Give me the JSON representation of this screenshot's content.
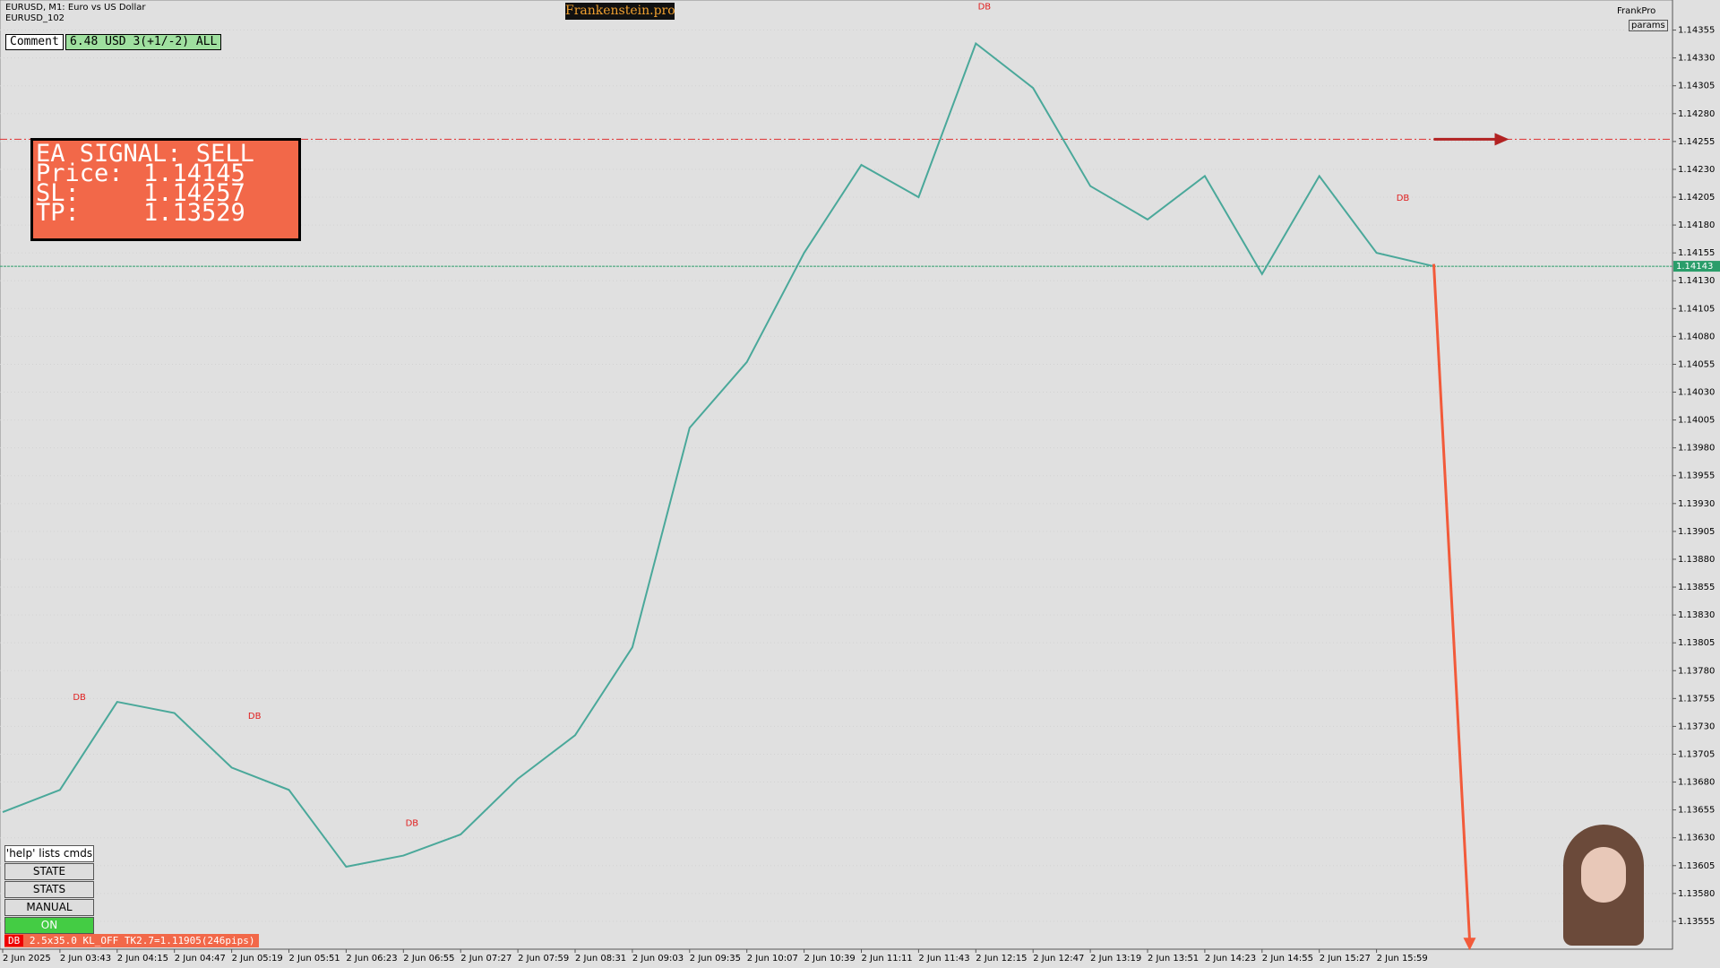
{
  "header": {
    "symbol": "EURUSD, M1:  Euro vs US Dollar",
    "account": "EURUSD_102",
    "brand": "Frankenstein.pro",
    "user": "FrankPro",
    "params": "params"
  },
  "comment": {
    "label": "Comment",
    "value": "6.48 USD 3(+1/-2) ALL"
  },
  "signal": {
    "title": "EA SIGNAL: SELL",
    "price_label": "Price:",
    "price": 1.14145,
    "sl_label": "SL:",
    "sl": 1.14257,
    "tp_label": "TP:",
    "tp": 1.13529
  },
  "buttons": [
    "'help' lists cmds",
    "STATE",
    "STATS",
    "MANUAL",
    "ON"
  ],
  "status": {
    "tag": "DB",
    "text": "2.5x35.0 KL_OFF TK2.7=1.11905(246pips)"
  },
  "chart_data": {
    "type": "line",
    "categories": [
      "2 Jun 2025",
      "2 Jun 03:43",
      "2 Jun 04:15",
      "2 Jun 04:47",
      "2 Jun 05:19",
      "2 Jun 05:51",
      "2 Jun 06:23",
      "2 Jun 06:55",
      "2 Jun 07:27",
      "2 Jun 07:59",
      "2 Jun 08:31",
      "2 Jun 09:03",
      "2 Jun 09:35",
      "2 Jun 10:07",
      "2 Jun 10:39",
      "2 Jun 11:11",
      "2 Jun 11:43",
      "2 Jun 12:15",
      "2 Jun 12:47",
      "2 Jun 13:19",
      "2 Jun 13:51",
      "2 Jun 14:23",
      "2 Jun 14:55",
      "2 Jun 15:27",
      "2 Jun 15:59",
      null
    ],
    "series": [
      {
        "name": "EURUSD",
        "color": "#4aa89a",
        "values": [
          1.13653,
          1.13673,
          1.13752,
          1.13742,
          1.13693,
          1.13673,
          1.13604,
          1.13614,
          1.13633,
          1.13683,
          1.13722,
          1.13801,
          1.13998,
          1.14057,
          1.14155,
          1.14234,
          1.14205,
          1.14343,
          1.14303,
          1.14215,
          1.14185,
          1.14224,
          1.14136,
          1.14224,
          1.14155,
          1.14143
        ]
      }
    ],
    "ylim": [
      1.1353,
      1.14382
    ],
    "yticks": [
      1.13555,
      {
        "value": 1.1358,
        "label": "1.13580"
      },
      1.13605,
      {
        "value": 1.1363,
        "label": "1.13630"
      },
      1.13655,
      {
        "value": 1.1368,
        "label": "1.13680"
      },
      1.13705,
      {
        "value": 1.1373,
        "label": "1.13730"
      },
      1.13755,
      {
        "value": 1.1378,
        "label": "1.13780"
      },
      1.13805,
      {
        "value": 1.1383,
        "label": "1.13830"
      },
      1.13855,
      {
        "value": 1.1388,
        "label": "1.13880"
      },
      1.13905,
      {
        "value": 1.1393,
        "label": "1.13930"
      },
      1.13955,
      {
        "value": 1.1398,
        "label": "1.13980"
      },
      1.14005,
      {
        "value": 1.1403,
        "label": "1.14030"
      },
      1.14055,
      {
        "value": 1.1408,
        "label": "1.14080"
      },
      1.14105,
      {
        "value": 1.1413,
        "label": "1.14130"
      },
      1.14155,
      {
        "value": 1.1418,
        "label": "1.14180"
      },
      1.14205,
      {
        "value": 1.1423,
        "label": "1.14230"
      },
      1.14255,
      {
        "value": 1.1428,
        "label": "1.14280"
      },
      1.14305,
      {
        "value": 1.1433,
        "label": "1.14330"
      },
      1.14355
    ],
    "hlines": [
      {
        "value": 1.14257,
        "color": "#e03030"
      },
      {
        "value": 1.14143,
        "color": "#2a9d6a",
        "label": "1.14143"
      }
    ],
    "annotations": [
      {
        "text": "DB",
        "x": 1.34,
        "y": 1.13756
      },
      {
        "text": "DB",
        "x": 4.4,
        "y": 1.13739
      },
      {
        "text": "DB",
        "x": 7.15,
        "y": 1.13643
      },
      {
        "text": "DB",
        "x": 17.15,
        "y": 1.14376
      },
      {
        "text": "DB",
        "x": 24.46,
        "y": 1.14204
      }
    ]
  }
}
